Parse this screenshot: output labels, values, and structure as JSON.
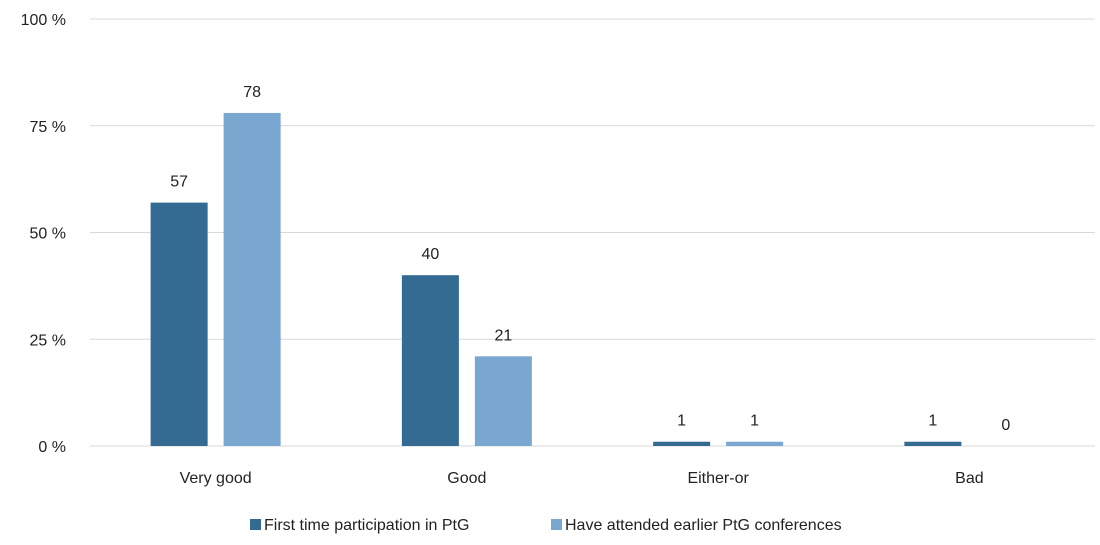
{
  "chart_data": {
    "type": "bar",
    "title": "",
    "xlabel": "",
    "ylabel": "",
    "categories": [
      "Very good",
      "Good",
      "Either-or",
      "Bad"
    ],
    "series": [
      {
        "name": "First time participation in PtG",
        "values": [
          57,
          40,
          1,
          1
        ],
        "color": "#336b92"
      },
      {
        "name": "Have attended earlier PtG conferences",
        "values": [
          78,
          21,
          1,
          0
        ],
        "color": "#7aa7d0"
      }
    ],
    "ylim": [
      0,
      100
    ],
    "yticks": [
      {
        "value": 0,
        "label": "0 %"
      },
      {
        "value": 25,
        "label": "25 %"
      },
      {
        "value": 50,
        "label": "50 %"
      },
      {
        "value": 75,
        "label": "75 %"
      },
      {
        "value": 100,
        "label": "100 %"
      }
    ],
    "grid": true,
    "legend_position": "bottom",
    "gridline_color": "#d9d9d9"
  }
}
